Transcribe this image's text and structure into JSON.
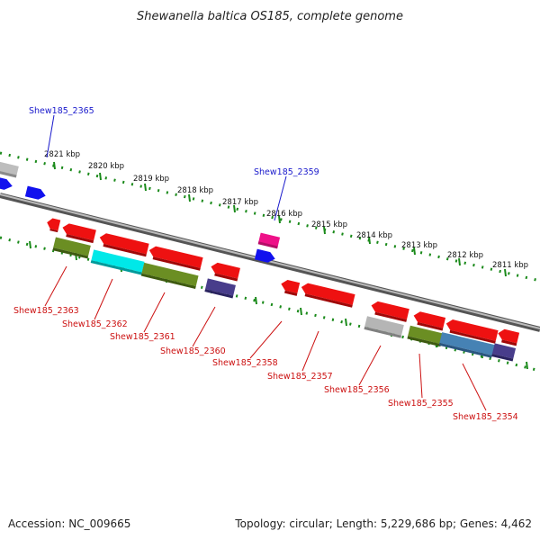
{
  "title": "Shewanella baltica OS185, complete genome",
  "footer": {
    "accession": "Accession: NC_009665",
    "summary": "Topology: circular; Length: 5,229,686 bp; Genes: 4,462"
  },
  "scale_labels": [
    "2821 kbp",
    "2820 kbp",
    "2819 kbp",
    "2818 kbp",
    "2817 kbp",
    "2816 kbp",
    "2815 kbp",
    "2814 kbp",
    "2813 kbp",
    "2812 kbp",
    "2811 kbp"
  ],
  "top_gene_labels": [
    "Shew185_2365",
    "Shew185_2359"
  ],
  "bottom_gene_labels": [
    "Shew185_2363",
    "Shew185_2362",
    "Shew185_2361",
    "Shew185_2360",
    "Shew185_2358",
    "Shew185_2357",
    "Shew185_2356",
    "Shew185_2355",
    "Shew185_2354"
  ],
  "colors": {
    "background": "#ffffff",
    "backbone": "#777777",
    "scale_dots": "#1a8a1a",
    "gene_red": "#ee1111",
    "gene_blue": "#1111ee",
    "gene_cyan": "#00e8e8",
    "gene_olive": "#6b8e23",
    "gene_gray": "#aaaaaa",
    "gene_purple": "#483d8b",
    "gene_magenta": "#ee1188",
    "gene_steel": "#4682b4",
    "label_top": "#1a1acc",
    "label_bottom": "#cc1111"
  }
}
